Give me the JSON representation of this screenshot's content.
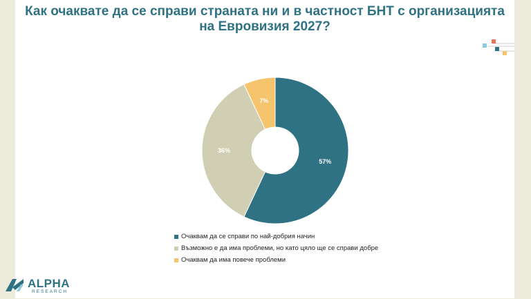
{
  "chart_data": {
    "type": "donut",
    "title": "Как очаквате да се справи страната ни и в частност БНТ с организацията на Евровизия 2027?",
    "title_lines": [
      "Как очаквате да се справи страната ни и в частност БНТ с организацията",
      "на Евровизия 2027?"
    ],
    "slices": [
      {
        "name": "Очаквам да се справи по най-добрия начин",
        "value": 57,
        "label": "57%",
        "color": "#2e7283"
      },
      {
        "name": "Възможно е да има проблеми, но като цяло ще се справи добре",
        "value": 36,
        "label": "36%",
        "color": "#d0ceb3"
      },
      {
        "name": "Очаквам да има повече проблеми",
        "value": 7,
        "label": "7%",
        "color": "#f5c46d"
      }
    ],
    "legend_position": "bottom"
  },
  "logo": {
    "name": "ALPHA",
    "sub": "RESEARCH"
  },
  "colors": {
    "accent": "#2e7283",
    "background": "#ecebdc",
    "deco_red": "#e8735a",
    "deco_blue": "#8fc9dc",
    "deco_yellow": "#f5c46d"
  }
}
